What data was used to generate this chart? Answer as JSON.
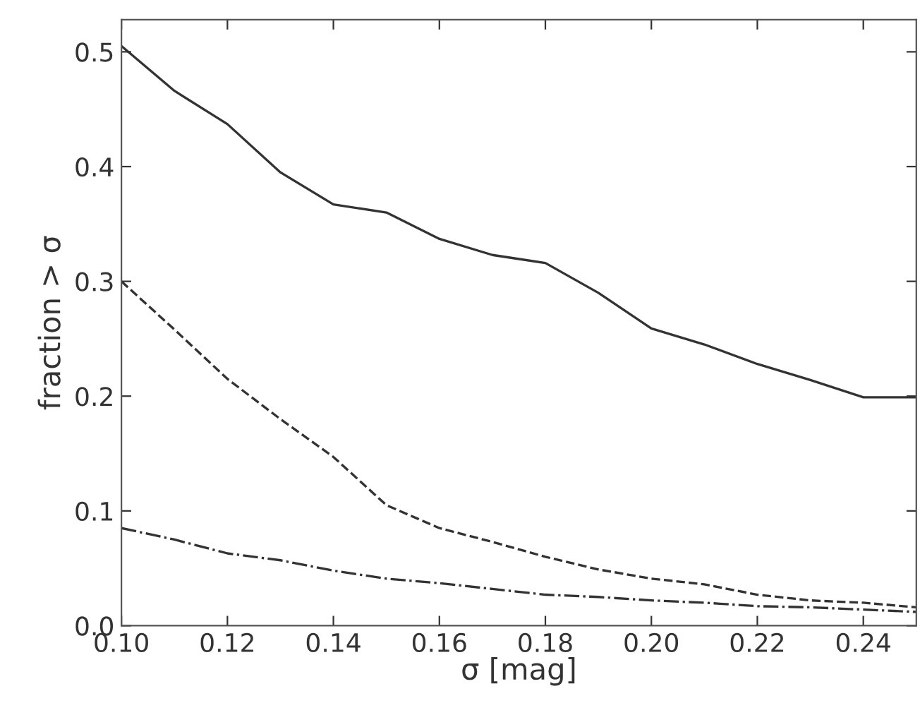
{
  "chart_data": {
    "type": "line",
    "xlabel": "σ [mag]",
    "ylabel": "fraction > σ",
    "x": [
      0.1,
      0.11,
      0.12,
      0.13,
      0.14,
      0.15,
      0.16,
      0.17,
      0.18,
      0.19,
      0.2,
      0.21,
      0.22,
      0.23,
      0.24,
      0.25
    ],
    "series": [
      {
        "color": "#333333",
        "line_style": "solid",
        "values": [
          0.505,
          0.466,
          0.437,
          0.395,
          0.367,
          0.36,
          0.337,
          0.323,
          0.316,
          0.29,
          0.259,
          0.245,
          0.228,
          0.214,
          0.199,
          0.199
        ]
      },
      {
        "color": "#333333",
        "line_style": "dashed",
        "values": [
          0.3,
          0.258,
          0.215,
          0.18,
          0.147,
          0.105,
          0.085,
          0.073,
          0.06,
          0.049,
          0.041,
          0.036,
          0.027,
          0.022,
          0.02,
          0.016
        ]
      },
      {
        "color": "#333333",
        "line_style": "dashdot",
        "values": [
          0.085,
          0.075,
          0.063,
          0.057,
          0.048,
          0.041,
          0.037,
          0.032,
          0.027,
          0.025,
          0.022,
          0.02,
          0.017,
          0.016,
          0.014,
          0.012
        ]
      }
    ],
    "xlim": [
      0.1,
      0.25
    ],
    "ylim": [
      0,
      0.528
    ],
    "xticks": [
      {
        "value": 0.1,
        "label": "0.10"
      },
      0.12,
      0.14,
      0.16,
      0.18,
      {
        "value": 0.2,
        "label": "0.20"
      },
      0.22,
      0.24
    ],
    "yticks": [
      {
        "value": 0,
        "label": "0.0"
      },
      0.1,
      0.2,
      0.3,
      0.4,
      0.5
    ],
    "grid": false,
    "legend": false,
    "marker": "none"
  }
}
